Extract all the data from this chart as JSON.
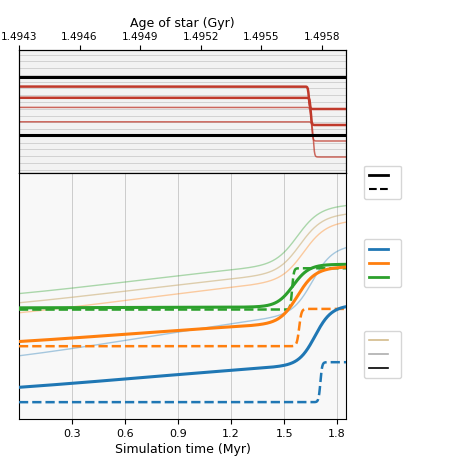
{
  "top_xlabel": "Age of star (Gyr)",
  "top_xticks": [
    1.4943,
    1.4946,
    1.4949,
    1.4952,
    1.4955,
    1.4958
  ],
  "bottom_xlabel": "Simulation time (Myr)",
  "bottom_xticks": [
    0.3,
    0.6,
    0.9,
    1.2,
    1.5,
    1.8
  ],
  "sim_time_min": 0.0,
  "sim_time_max": 1.85,
  "age_min": 1.4943,
  "age_max": 1.49592,
  "colors": {
    "blue": "#1f77b4",
    "orange": "#ff7f0e",
    "green": "#2ca02c",
    "red": "#c0392b",
    "tan": "#c8aa6e",
    "gray": "#999999",
    "black": "#000000"
  },
  "background_color": "#ffffff"
}
